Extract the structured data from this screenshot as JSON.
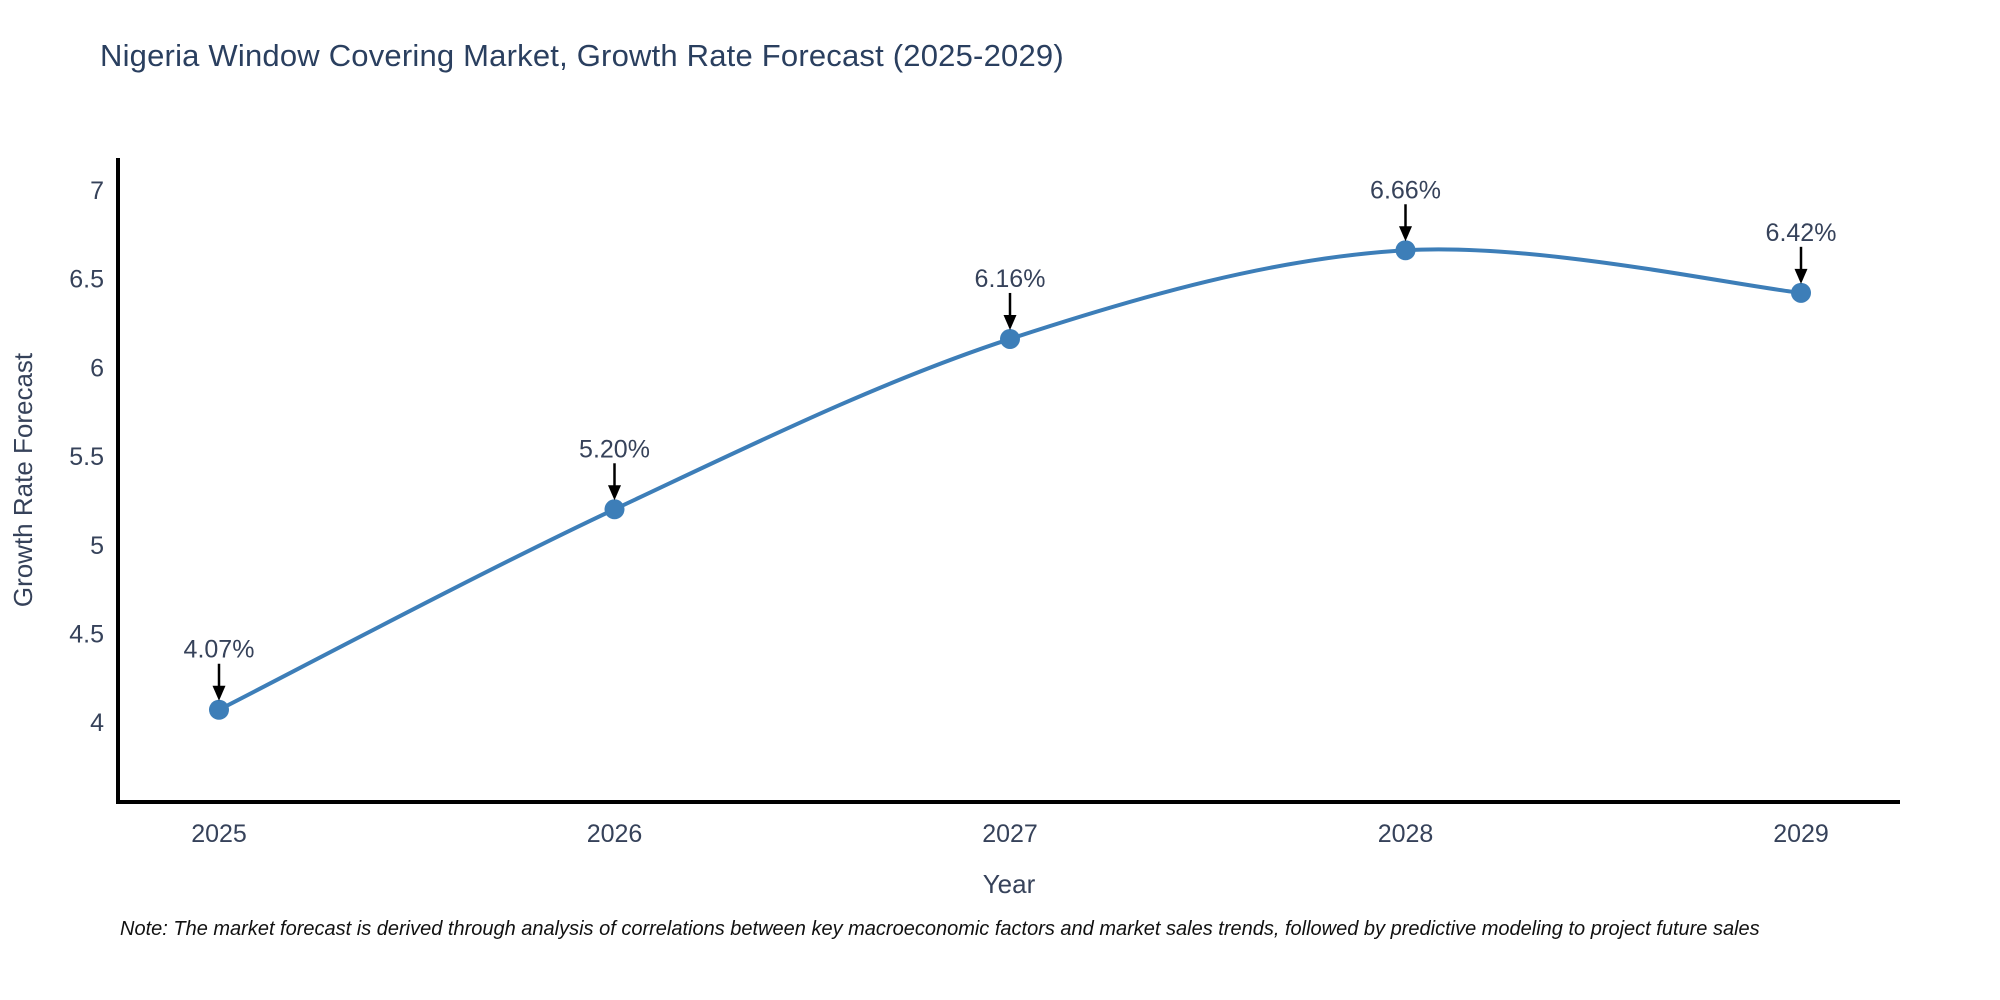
{
  "title": "Nigeria Window Covering Market, Growth Rate Forecast (2025-2029)",
  "note": "Note: The market forecast is derived through analysis of correlations between key macroeconomic factors and market sales trends, followed by predictive modeling to project future sales",
  "chart_data": {
    "type": "line",
    "title": "Nigeria Window Covering Market, Growth Rate Forecast (2025-2029)",
    "xlabel": "Year",
    "ylabel": "Growth Rate Forecast",
    "categories": [
      "2025",
      "2026",
      "2027",
      "2028",
      "2029"
    ],
    "series": [
      {
        "name": "Growth Rate Forecast",
        "values": [
          4.07,
          5.2,
          6.16,
          6.66,
          6.42
        ]
      }
    ],
    "point_labels": [
      "4.07%",
      "5.20%",
      "6.16%",
      "6.66%",
      "6.42%"
    ],
    "y_ticks": [
      "4",
      "4.5",
      "5",
      "5.5",
      "6",
      "6.5",
      "7"
    ],
    "y_tick_values": [
      4,
      4.5,
      5,
      5.5,
      6,
      6.5,
      7
    ],
    "ylim": [
      3.55,
      7.18
    ],
    "grid": false,
    "legend_position": "none",
    "line_shape": "spline",
    "colors": {
      "line": "#3d7eb8",
      "marker": "#3d7eb8",
      "axis": "#000000",
      "title": "#2a3f5f",
      "tick": "#36425a",
      "annotation": "#36425a",
      "arrow": "#000000",
      "note": "#111111",
      "background": "#ffffff"
    }
  }
}
